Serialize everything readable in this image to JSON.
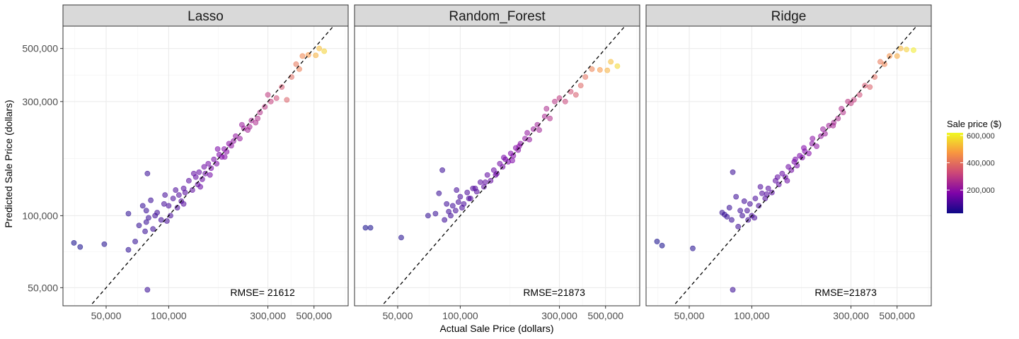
{
  "chart_data": {
    "type": "scatter",
    "xlabel": "Actual Sale Price (dollars)",
    "ylabel": "Predicted Sale Price (dollars)",
    "x_scale": "log10",
    "y_scale": "log10",
    "xlim": [
      31000,
      730000
    ],
    "ylim": [
      42000,
      620000
    ],
    "x_ticks": [
      {
        "value": 50000,
        "label": "50,000"
      },
      {
        "value": 100000,
        "label": "100,000"
      },
      {
        "value": 300000,
        "label": "300,000"
      },
      {
        "value": 500000,
        "label": "500,000"
      }
    ],
    "y_ticks": [
      {
        "value": 50000,
        "label": "50,000"
      },
      {
        "value": 100000,
        "label": "100,000"
      },
      {
        "value": 300000,
        "label": "300,000"
      },
      {
        "value": 500000,
        "label": "500,000"
      }
    ],
    "reference_line": "y = x (dashed)",
    "grid": true,
    "colormap": "plasma",
    "legend": {
      "title": "Sale price ($)",
      "position": "right",
      "range": [
        30000,
        620000
      ],
      "ticks": [
        {
          "value": 200000,
          "label": "200,000"
        },
        {
          "value": 400000,
          "label": "400,000"
        },
        {
          "value": 600000,
          "label": "600,000"
        }
      ]
    },
    "panels": [
      {
        "title": "Lasso",
        "annotation": "RMSE= 21612",
        "points": [
          [
            35000,
            77000
          ],
          [
            37500,
            74000
          ],
          [
            49000,
            76000
          ],
          [
            64000,
            102000
          ],
          [
            64000,
            72000
          ],
          [
            69000,
            78000
          ],
          [
            79000,
            49000
          ],
          [
            77000,
            86000
          ],
          [
            72000,
            91000
          ],
          [
            79000,
            150000
          ],
          [
            78000,
            94000
          ],
          [
            84000,
            88000
          ],
          [
            82000,
            116000
          ],
          [
            75000,
            110000
          ],
          [
            92000,
            96000
          ],
          [
            86000,
            100000
          ],
          [
            78000,
            105000
          ],
          [
            80000,
            98000
          ],
          [
            88000,
            103000
          ],
          [
            95000,
            112000
          ],
          [
            98000,
            95000
          ],
          [
            100000,
            110000
          ],
          [
            105000,
            118000
          ],
          [
            110000,
            108000
          ],
          [
            112000,
            122000
          ],
          [
            115000,
            115000
          ],
          [
            118000,
            130000
          ],
          [
            120000,
            125000
          ],
          [
            125000,
            140000
          ],
          [
            130000,
            128000
          ],
          [
            135000,
            145000
          ],
          [
            138000,
            135000
          ],
          [
            140000,
            152000
          ],
          [
            145000,
            142000
          ],
          [
            148000,
            160000
          ],
          [
            150000,
            150000
          ],
          [
            155000,
            165000
          ],
          [
            160000,
            158000
          ],
          [
            165000,
            172000
          ],
          [
            170000,
            165000
          ],
          [
            175000,
            180000
          ],
          [
            180000,
            176000
          ],
          [
            185000,
            190000
          ],
          [
            190000,
            185000
          ],
          [
            195000,
            200000
          ],
          [
            200000,
            196000
          ],
          [
            210000,
            215000
          ],
          [
            220000,
            210000
          ],
          [
            230000,
            232000
          ],
          [
            240000,
            228000
          ],
          [
            250000,
            250000
          ],
          [
            262000,
            245000
          ],
          [
            275000,
            270000
          ],
          [
            290000,
            285000
          ],
          [
            310000,
            300000
          ],
          [
            330000,
            310000
          ],
          [
            350000,
            345000
          ],
          [
            370000,
            305000
          ],
          [
            390000,
            380000
          ],
          [
            410000,
            430000
          ],
          [
            425000,
            410000
          ],
          [
            440000,
            465000
          ],
          [
            470000,
            470000
          ],
          [
            510000,
            468000
          ],
          [
            530000,
            500000
          ],
          [
            560000,
            487000
          ],
          [
            102000,
            100000
          ],
          [
            118000,
            112000
          ],
          [
            132000,
            150000
          ],
          [
            142000,
            132000
          ],
          [
            158000,
            148000
          ],
          [
            172000,
            190000
          ],
          [
            186000,
            176000
          ],
          [
            205000,
            205000
          ],
          [
            225000,
            240000
          ],
          [
            245000,
            235000
          ],
          [
            268000,
            255000
          ],
          [
            300000,
            320000
          ],
          [
            96000,
            122000
          ],
          [
            108000,
            128000
          ]
        ]
      },
      {
        "title": "Random_Forest",
        "annotation": "RMSE=21873",
        "points": [
          [
            35000,
            89000
          ],
          [
            37000,
            89000
          ],
          [
            52000,
            81000
          ],
          [
            70000,
            100000
          ],
          [
            76000,
            102000
          ],
          [
            79000,
            124000
          ],
          [
            82000,
            155000
          ],
          [
            84000,
            96000
          ],
          [
            88000,
            104000
          ],
          [
            92000,
            110000
          ],
          [
            95000,
            105000
          ],
          [
            98000,
            114000
          ],
          [
            100000,
            120000
          ],
          [
            104000,
            112000
          ],
          [
            108000,
            125000
          ],
          [
            112000,
            118000
          ],
          [
            115000,
            130000
          ],
          [
            120000,
            126000
          ],
          [
            125000,
            138000
          ],
          [
            130000,
            132000
          ],
          [
            135000,
            148000
          ],
          [
            140000,
            140000
          ],
          [
            145000,
            155000
          ],
          [
            150000,
            150000
          ],
          [
            155000,
            165000
          ],
          [
            160000,
            160000
          ],
          [
            165000,
            172000
          ],
          [
            170000,
            168000
          ],
          [
            175000,
            182000
          ],
          [
            180000,
            178000
          ],
          [
            185000,
            192000
          ],
          [
            190000,
            188000
          ],
          [
            195000,
            200000
          ],
          [
            205000,
            210000
          ],
          [
            215000,
            208000
          ],
          [
            225000,
            230000
          ],
          [
            240000,
            228000
          ],
          [
            255000,
            260000
          ],
          [
            270000,
            255000
          ],
          [
            285000,
            300000
          ],
          [
            300000,
            310000
          ],
          [
            320000,
            300000
          ],
          [
            340000,
            330000
          ],
          [
            360000,
            320000
          ],
          [
            380000,
            350000
          ],
          [
            400000,
            380000
          ],
          [
            430000,
            410000
          ],
          [
            470000,
            407000
          ],
          [
            510000,
            405000
          ],
          [
            530000,
            440000
          ],
          [
            570000,
            422000
          ],
          [
            118000,
            130000
          ],
          [
            132000,
            138000
          ],
          [
            148000,
            148000
          ],
          [
            162000,
            175000
          ],
          [
            178000,
            170000
          ],
          [
            192000,
            195000
          ],
          [
            210000,
            222000
          ],
          [
            235000,
            240000
          ],
          [
            260000,
            280000
          ],
          [
            90000,
            100000
          ],
          [
            102000,
            108000
          ],
          [
            86000,
            112000
          ],
          [
            96000,
            128000
          ],
          [
            110000,
            118000
          ]
        ]
      },
      {
        "title": "Ridge",
        "annotation": "RMSE=21873",
        "points": [
          [
            35000,
            78000
          ],
          [
            37000,
            75000
          ],
          [
            52000,
            73000
          ],
          [
            72000,
            103000
          ],
          [
            74000,
            101000
          ],
          [
            76000,
            99000
          ],
          [
            80000,
            96000
          ],
          [
            81000,
            49000
          ],
          [
            81000,
            152000
          ],
          [
            84000,
            120000
          ],
          [
            78000,
            108000
          ],
          [
            86000,
            90000
          ],
          [
            90000,
            100000
          ],
          [
            92000,
            115000
          ],
          [
            95000,
            105000
          ],
          [
            98000,
            112000
          ],
          [
            100000,
            100000
          ],
          [
            104000,
            118000
          ],
          [
            108000,
            110000
          ],
          [
            112000,
            124000
          ],
          [
            116000,
            118000
          ],
          [
            120000,
            130000
          ],
          [
            125000,
            125000
          ],
          [
            130000,
            140000
          ],
          [
            135000,
            135000
          ],
          [
            140000,
            150000
          ],
          [
            145000,
            145000
          ],
          [
            150000,
            160000
          ],
          [
            155000,
            155000
          ],
          [
            160000,
            168000
          ],
          [
            165000,
            162000
          ],
          [
            170000,
            178000
          ],
          [
            175000,
            175000
          ],
          [
            180000,
            186000
          ],
          [
            188000,
            182000
          ],
          [
            195000,
            200000
          ],
          [
            205000,
            195000
          ],
          [
            215000,
            215000
          ],
          [
            225000,
            220000
          ],
          [
            235000,
            238000
          ],
          [
            248000,
            245000
          ],
          [
            260000,
            255000
          ],
          [
            275000,
            270000
          ],
          [
            290000,
            300000
          ],
          [
            310000,
            305000
          ],
          [
            330000,
            320000
          ],
          [
            350000,
            350000
          ],
          [
            370000,
            345000
          ],
          [
            390000,
            380000
          ],
          [
            415000,
            440000
          ],
          [
            435000,
            430000
          ],
          [
            460000,
            465000
          ],
          [
            500000,
            465000
          ],
          [
            520000,
            500000
          ],
          [
            555000,
            495000
          ],
          [
            600000,
            492000
          ],
          [
            88000,
            105000
          ],
          [
            103000,
            98000
          ],
          [
            118000,
            123000
          ],
          [
            133000,
            145000
          ],
          [
            148000,
            140000
          ],
          [
            162000,
            172000
          ],
          [
            178000,
            192000
          ],
          [
            196000,
            210000
          ],
          [
            220000,
            230000
          ],
          [
            246000,
            238000
          ],
          [
            270000,
            280000
          ],
          [
            300000,
            295000
          ],
          [
            96000,
            96000
          ],
          [
            110000,
            132000
          ]
        ]
      }
    ]
  }
}
